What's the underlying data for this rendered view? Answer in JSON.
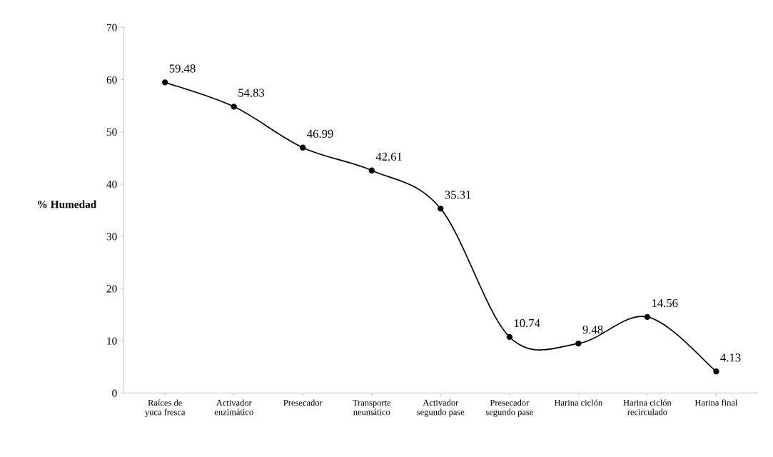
{
  "chart_data": {
    "type": "line",
    "ylabel": "% Humedad",
    "categories": [
      "Raíces de yuca fresca",
      "Activador enzimático",
      "Presecador",
      "Transporte neumático",
      "Activador segundo pase",
      "Presecador segundo pase",
      "Harina ciclón",
      "Harina ciclón recirculado",
      "Harina final"
    ],
    "series": [
      {
        "color": "#000000",
        "values": [
          59.48,
          54.83,
          46.99,
          42.61,
          35.31,
          10.74,
          9.48,
          14.56,
          4.13
        ]
      }
    ],
    "ylim": [
      0,
      70
    ],
    "yticks": [
      0,
      10,
      20,
      30,
      40,
      50,
      60,
      70
    ],
    "data_labels": true,
    "marker": "circle",
    "line_style": "solid",
    "grid": false
  }
}
